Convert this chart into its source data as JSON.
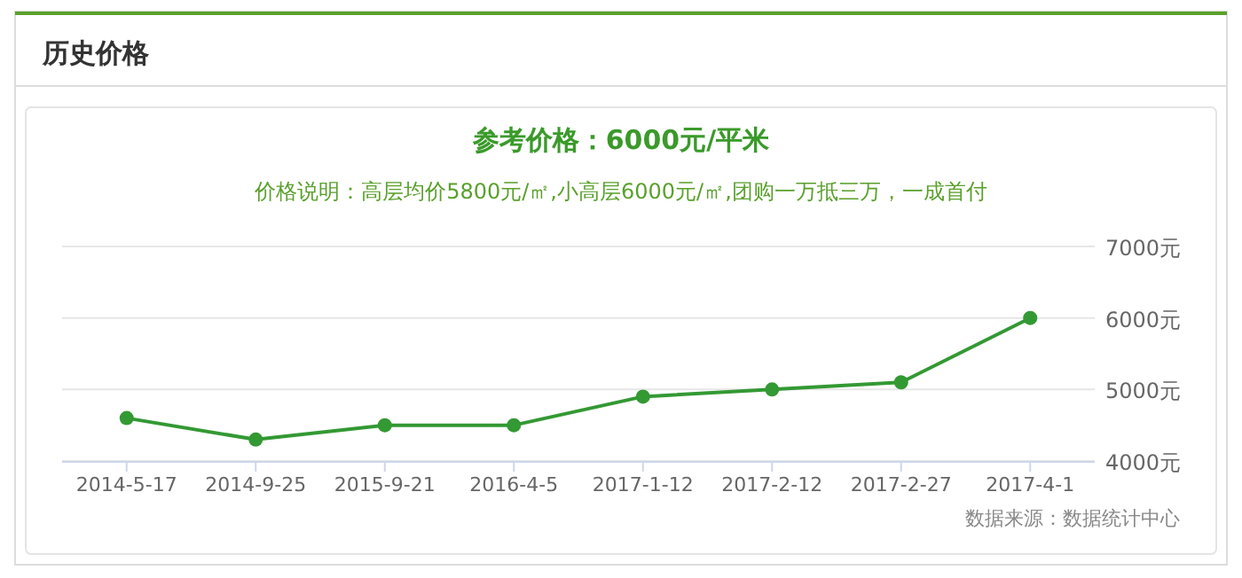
{
  "chart_data": {
    "type": "line",
    "title": "历史价格",
    "subtitle": "参考价格：6000元/平米",
    "annotations": [
      "价格说明：高层均价5800元/㎡,小高层6000元/㎡,团购一万抵三万，一成首付",
      "数据来源：数据统计中心"
    ],
    "categories": [
      "2014-5-17",
      "2014-9-25",
      "2015-9-21",
      "2016-4-5",
      "2017-1-12",
      "2017-2-12",
      "2017-2-27",
      "2017-4-1"
    ],
    "series": [
      {
        "color": "#339933",
        "values": [
          4600,
          4300,
          4500,
          4500,
          4900,
          5000,
          5100,
          6000
        ]
      }
    ],
    "ylim": [
      4000,
      7000
    ],
    "yticks": [
      {
        "value": 4000,
        "label": "4000元"
      },
      {
        "value": 5000,
        "label": "5000元"
      },
      {
        "value": 6000,
        "label": "6000元"
      },
      {
        "value": 7000,
        "label": "7000元"
      }
    ],
    "grid": "y",
    "marker": "circle"
  }
}
